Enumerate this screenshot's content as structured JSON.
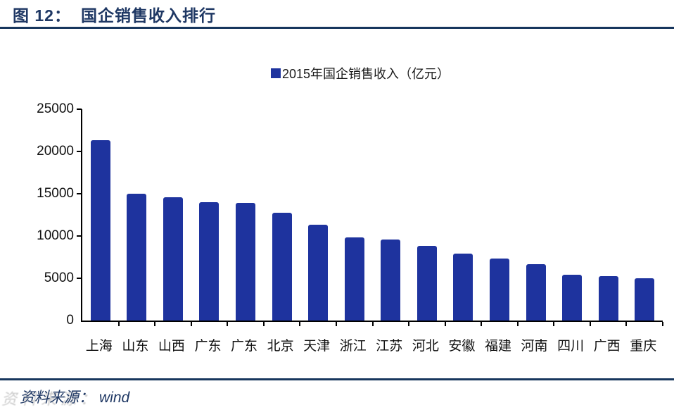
{
  "title": {
    "prefix": "图 12：",
    "text": "国企销售收入排行"
  },
  "legend": {
    "label": "2015年国企销售收入（亿元）"
  },
  "source": {
    "label": "资料来源：",
    "value": "wind"
  },
  "colors": {
    "accent_navy": "#1f3864",
    "rule_navy": "#17365d",
    "bar_blue": "#1e339e",
    "axis_black": "#000000"
  },
  "chart_data": {
    "type": "bar",
    "title": "2015年国企销售收入（亿元）",
    "categories": [
      "上海",
      "山东",
      "山西",
      "广东",
      "广东",
      "北京",
      "天津",
      "浙江",
      "江苏",
      "河北",
      "安徽",
      "福建",
      "河南",
      "四川",
      "广西",
      "重庆"
    ],
    "values": [
      21300,
      15000,
      14600,
      14000,
      13950,
      12750,
      11300,
      9800,
      9600,
      8800,
      7950,
      7300,
      6650,
      5400,
      5250,
      5000
    ],
    "xlabel": "",
    "ylabel": "",
    "ylim": [
      0,
      25000
    ],
    "yticks": [
      0,
      5000,
      10000,
      15000,
      20000,
      25000
    ],
    "grid": false,
    "legend_position": "top-center",
    "bar_color": "#1e339e"
  }
}
